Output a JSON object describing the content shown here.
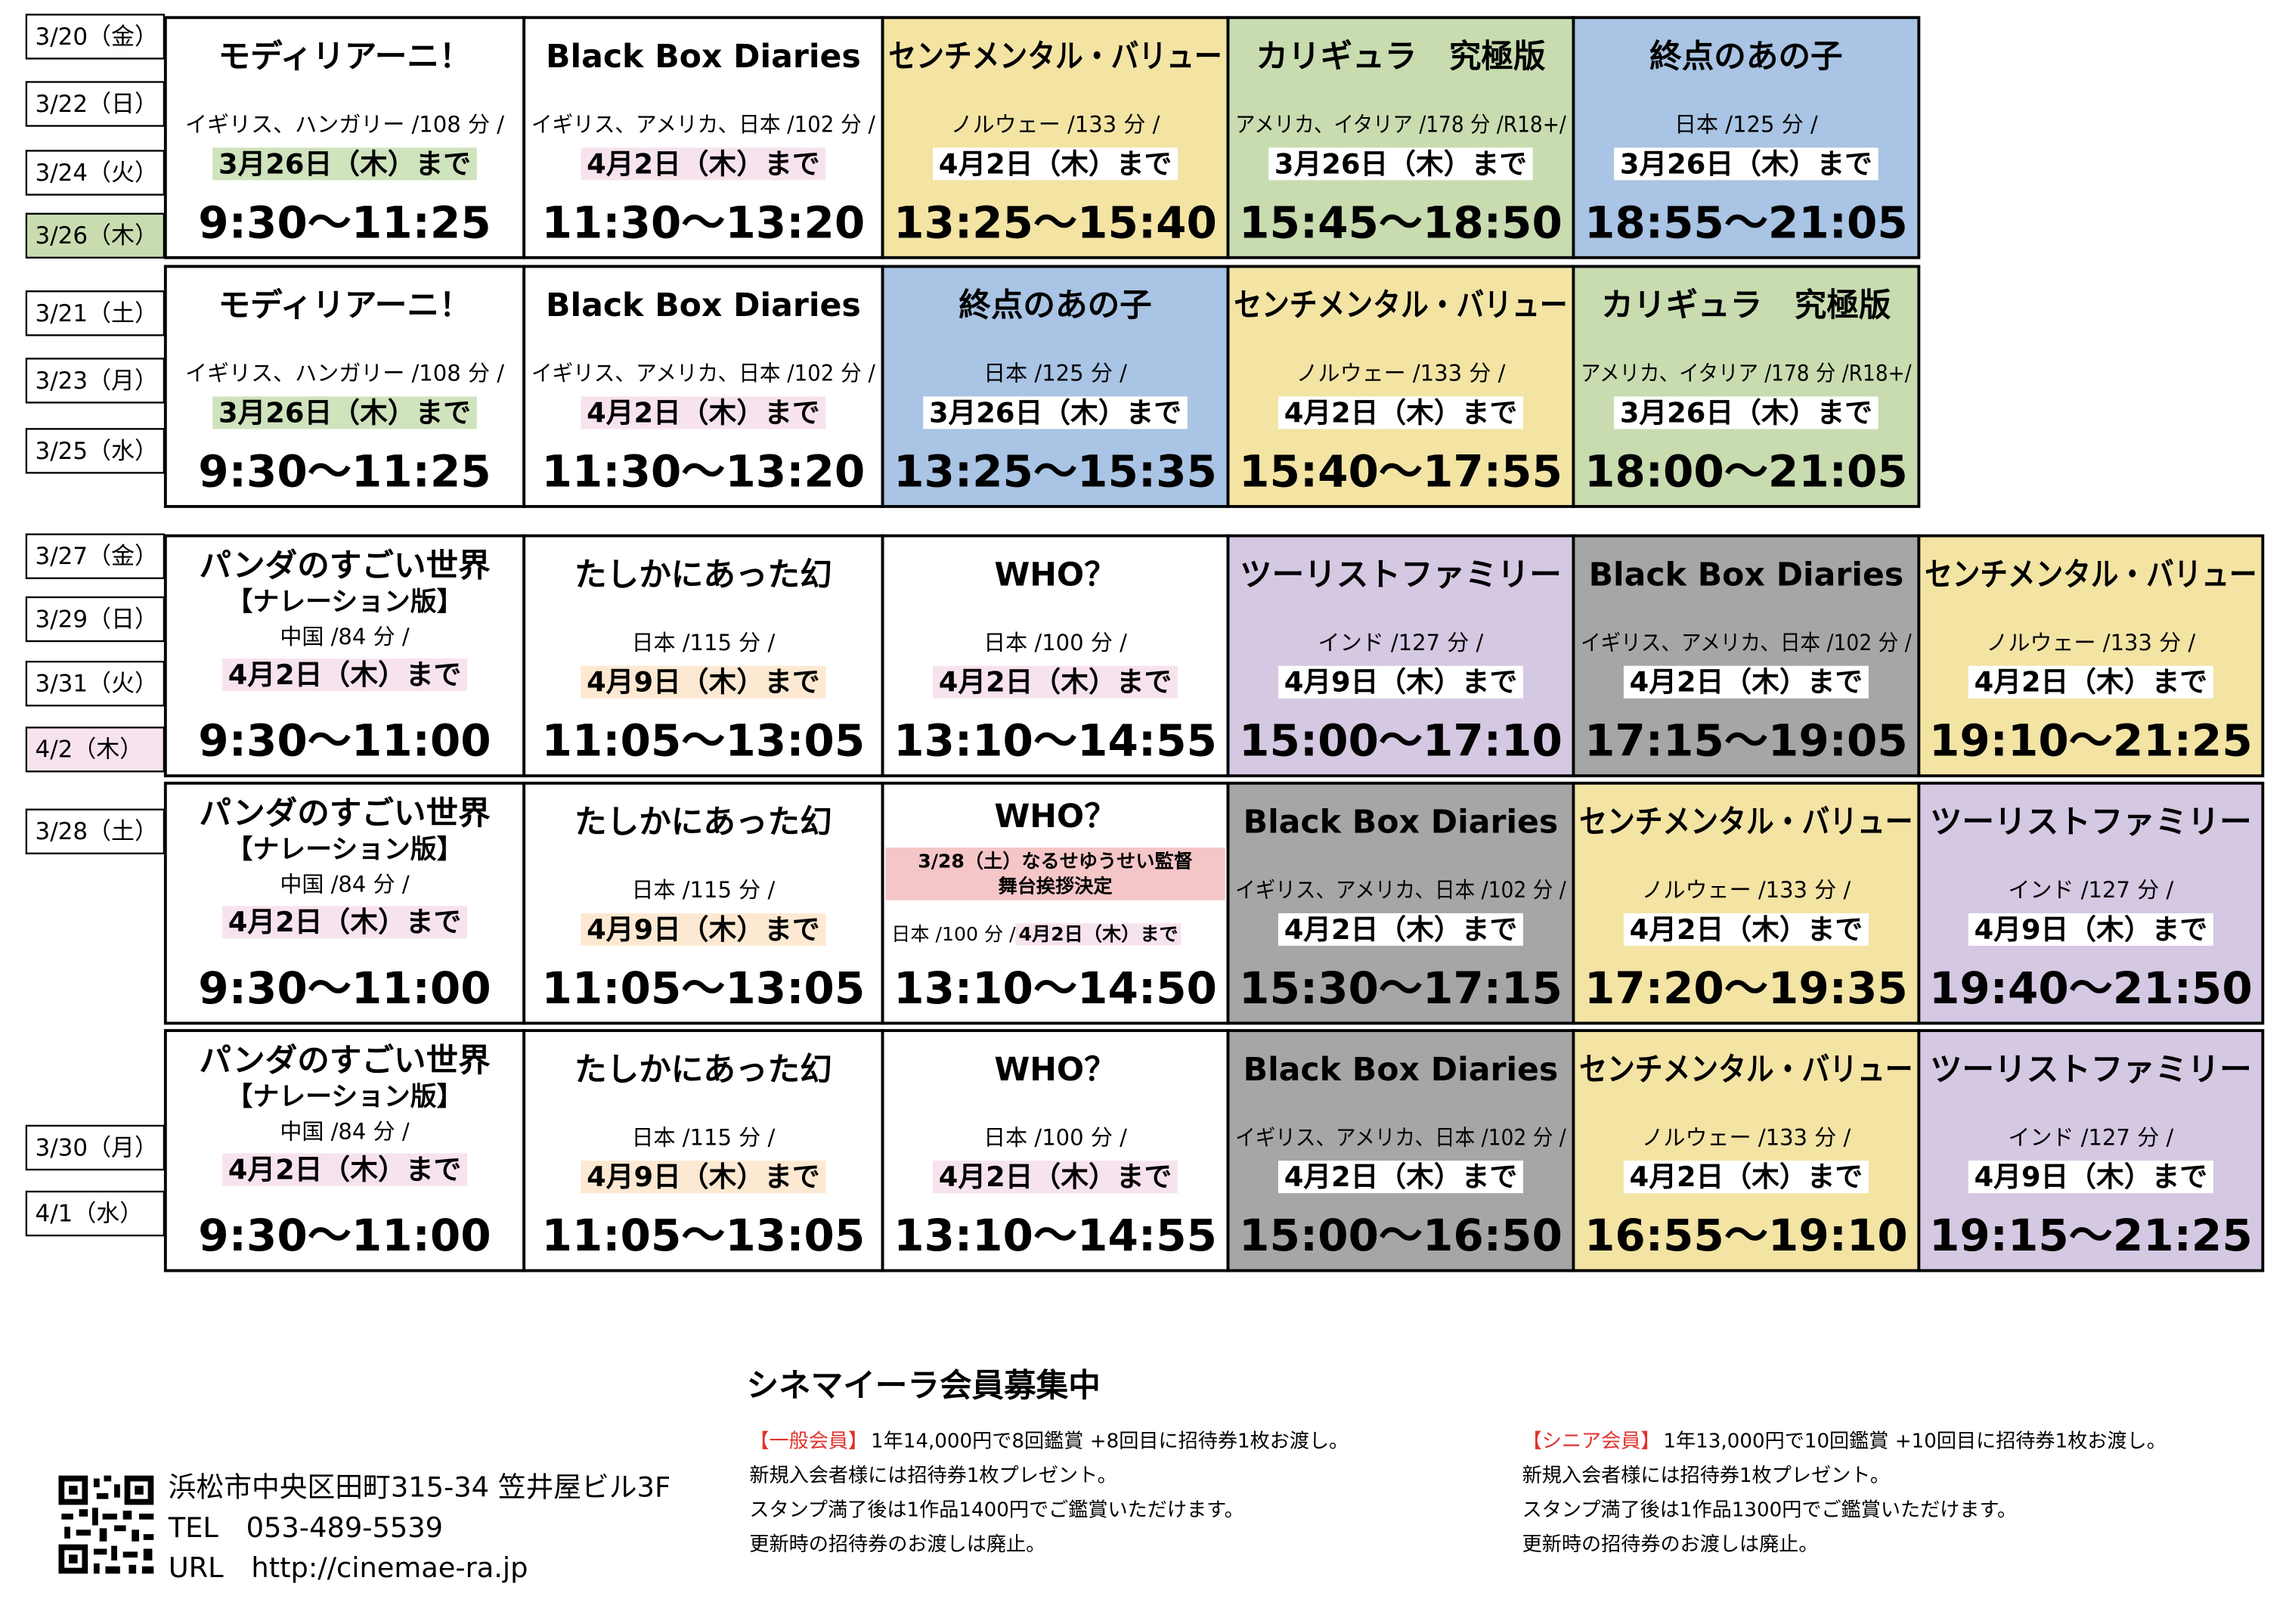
{
  "blocks": [
    {
      "dates": [
        {
          "text": "3/20（金）"
        },
        {
          "text": "3/22（日）"
        },
        {
          "text": "3/24（火）"
        },
        {
          "text": "3/26（木）",
          "bg": "#c8dcb0"
        }
      ],
      "cells": [
        {
          "title": "モディリアーニ！",
          "info": "イギリス、ハンガリー /108 分 /",
          "until": "3月26日（木）まで",
          "until_bg": "#cfe3bd",
          "time": "9:30〜11:25",
          "bg": "#ffffff"
        },
        {
          "title": "Black Box Diaries",
          "info": "イギリス、アメリカ、日本 /102 分 /",
          "until": "4月2日（木）まで",
          "until_bg": "#f7e3ee",
          "time": "11:30〜13:20",
          "bg": "#ffffff"
        },
        {
          "title": "センチメンタル・バリュー",
          "info": "ノルウェー /133 分 /",
          "until": "4月2日（木）まで",
          "time": "13:25〜15:40",
          "bg": "#f3e4a4"
        },
        {
          "title": "カリギュラ　究極版",
          "info": "アメリカ、イタリア /178 分 /R18+/",
          "until": "3月26日（木）まで",
          "time": "15:45〜18:50",
          "bg": "#c8dcb0"
        },
        {
          "title": "終点のあの子",
          "info": "日本 /125 分 /",
          "until": "3月26日（木）まで",
          "time": "18:55〜21:05",
          "bg": "#a9c4e4"
        }
      ]
    },
    {
      "dates": [
        {
          "text": "3/21（土）"
        },
        {
          "text": "3/23（月）"
        },
        {
          "text": "3/25（水）"
        }
      ],
      "cells": [
        {
          "title": "モディリアーニ！",
          "info": "イギリス、ハンガリー /108 分 /",
          "until": "3月26日（木）まで",
          "until_bg": "#cfe3bd",
          "time": "9:30〜11:25",
          "bg": "#ffffff"
        },
        {
          "title": "Black Box Diaries",
          "info": "イギリス、アメリカ、日本 /102 分 /",
          "until": "4月2日（木）まで",
          "until_bg": "#f7e3ee",
          "time": "11:30〜13:20",
          "bg": "#ffffff"
        },
        {
          "title": "終点のあの子",
          "info": "日本 /125 分 /",
          "until": "3月26日（木）まで",
          "time": "13:25〜15:35",
          "bg": "#a9c4e4"
        },
        {
          "title": "センチメンタル・バリュー",
          "info": "ノルウェー /133 分 /",
          "until": "4月2日（木）まで",
          "time": "15:40〜17:55",
          "bg": "#f3e4a4"
        },
        {
          "title": "カリギュラ　究極版",
          "info": "アメリカ、イタリア /178 分 /R18+/",
          "until": "3月26日（木）まで",
          "time": "18:00〜21:05",
          "bg": "#c8dcb0"
        }
      ]
    },
    {
      "dates": [
        {
          "text": "3/27（金）"
        },
        {
          "text": "3/29（日）"
        },
        {
          "text": "3/31（火）"
        },
        {
          "text": "4/2（木）",
          "bg": "#f7e3ee"
        }
      ],
      "cells": [
        {
          "title": "パンダのすごい世界",
          "subtitle": "【ナレーション版】",
          "info": "中国 /84 分 /",
          "until": "4月2日（木）まで",
          "until_bg": "#f7e3ee",
          "time": "9:30〜11:00",
          "bg": "#ffffff"
        },
        {
          "title": "たしかにあった幻",
          "info": "日本 /115 分 /",
          "until": "4月9日（木）まで",
          "until_bg": "#fde9d2",
          "time": "11:05〜13:05",
          "bg": "#ffffff"
        },
        {
          "title": "WHO？",
          "info": "日本 /100 分 /",
          "until": "4月2日（木）まで",
          "until_bg": "#f7e3ee",
          "time": "13:10〜14:55",
          "bg": "#ffffff"
        },
        {
          "title": "ツーリストファミリー",
          "info": "インド /127 分 /",
          "until": "4月9日（木）まで",
          "time": "15:00〜17:10",
          "bg": "#d5c8e2"
        },
        {
          "title": "Black Box Diaries",
          "info": "イギリス、アメリカ、日本 /102 分 /",
          "until": "4月2日（木）まで",
          "time": "17:15〜19:05",
          "bg": "#a6a6a6"
        },
        {
          "title": "センチメンタル・バリュー",
          "info": "ノルウェー /133 分 /",
          "until": "4月2日（木）まで",
          "time": "19:10〜21:25",
          "bg": "#f3e4a4"
        }
      ]
    },
    {
      "dates": [
        {
          "text": "3/28（土）"
        }
      ],
      "cells": [
        {
          "title": "パンダのすごい世界",
          "subtitle": "【ナレーション版】",
          "info": "中国 /84 分 /",
          "until": "4月2日（木）まで",
          "until_bg": "#f7e3ee",
          "time": "9:30〜11:00",
          "bg": "#ffffff"
        },
        {
          "title": "たしかにあった幻",
          "info": "日本 /115 分 /",
          "until": "4月9日（木）まで",
          "until_bg": "#fde9d2",
          "time": "11:05〜13:05",
          "bg": "#ffffff"
        },
        {
          "title": "WHO？",
          "note": [
            "3/28（土）なるせゆうせい監督",
            "舞台挨拶決定"
          ],
          "info": "日本 /100 分 /",
          "until": "4月2日（木）まで",
          "until_bg": "#f7e3ee",
          "time": "13:10〜14:50",
          "bg": "#ffffff"
        },
        {
          "title": "Black Box Diaries",
          "info": "イギリス、アメリカ、日本 /102 分 /",
          "until": "4月2日（木）まで",
          "time": "15:30〜17:15",
          "bg": "#a6a6a6"
        },
        {
          "title": "センチメンタル・バリュー",
          "info": "ノルウェー /133 分 /",
          "until": "4月2日（木）まで",
          "time": "17:20〜19:35",
          "bg": "#f3e4a4"
        },
        {
          "title": "ツーリストファミリー",
          "info": "インド /127 分 /",
          "until": "4月9日（木）まで",
          "time": "19:40〜21:50",
          "bg": "#d5c8e2"
        }
      ]
    },
    {
      "dates": [
        {
          "text": "3/30（月）"
        },
        {
          "text": "4/1（水）"
        }
      ],
      "cells": [
        {
          "title": "パンダのすごい世界",
          "subtitle": "【ナレーション版】",
          "info": "中国 /84 分 /",
          "until": "4月2日（木）まで",
          "until_bg": "#f7e3ee",
          "time": "9:30〜11:00",
          "bg": "#ffffff"
        },
        {
          "title": "たしかにあった幻",
          "info": "日本 /115 分 /",
          "until": "4月9日（木）まで",
          "until_bg": "#fde9d2",
          "time": "11:05〜13:05",
          "bg": "#ffffff"
        },
        {
          "title": "WHO？",
          "info": "日本 /100 分 /",
          "until": "4月2日（木）まで",
          "until_bg": "#f7e3ee",
          "time": "13:10〜14:55",
          "bg": "#ffffff"
        },
        {
          "title": "Black Box Diaries",
          "info": "イギリス、アメリカ、日本 /102 分 /",
          "until": "4月2日（木）まで",
          "time": "15:00〜16:50",
          "bg": "#a6a6a6"
        },
        {
          "title": "センチメンタル・バリュー",
          "info": "ノルウェー /133 分 /",
          "until": "4月2日（木）まで",
          "time": "16:55〜19:10",
          "bg": "#f3e4a4"
        },
        {
          "title": "ツーリストファミリー",
          "info": "インド /127 分 /",
          "until": "4月9日（木）まで",
          "time": "19:15〜21:25",
          "bg": "#d5c8e2"
        }
      ]
    }
  ],
  "membership": {
    "title": "シネマイーラ会員募集中",
    "general": {
      "label": "【一般会員】",
      "lines": [
        "1年14,000円で8回鑑賞 +8回目に招待券1枚お渡し。",
        "新規入会者様には招待券1枚プレゼント。",
        "スタンプ満了後は1作品1400円でご鑑賞いただけます。",
        "更新時の招待券のお渡しは廃止。"
      ]
    },
    "senior": {
      "label": "【シニア会員】",
      "lines": [
        "1年13,000円で10回鑑賞 +10回目に招待券1枚お渡し。",
        "新規入会者様には招待券1枚プレゼント。",
        "スタンプ満了後は1作品1300円でご鑑賞いただけます。",
        "更新時の招待券のお渡しは廃止。"
      ]
    }
  },
  "contact": {
    "address": "浜松市中央区田町315-34 笠井屋ビル3F",
    "tel": "TEL　053-489-5539",
    "url": "URL　http://cinemae-ra.jp"
  }
}
